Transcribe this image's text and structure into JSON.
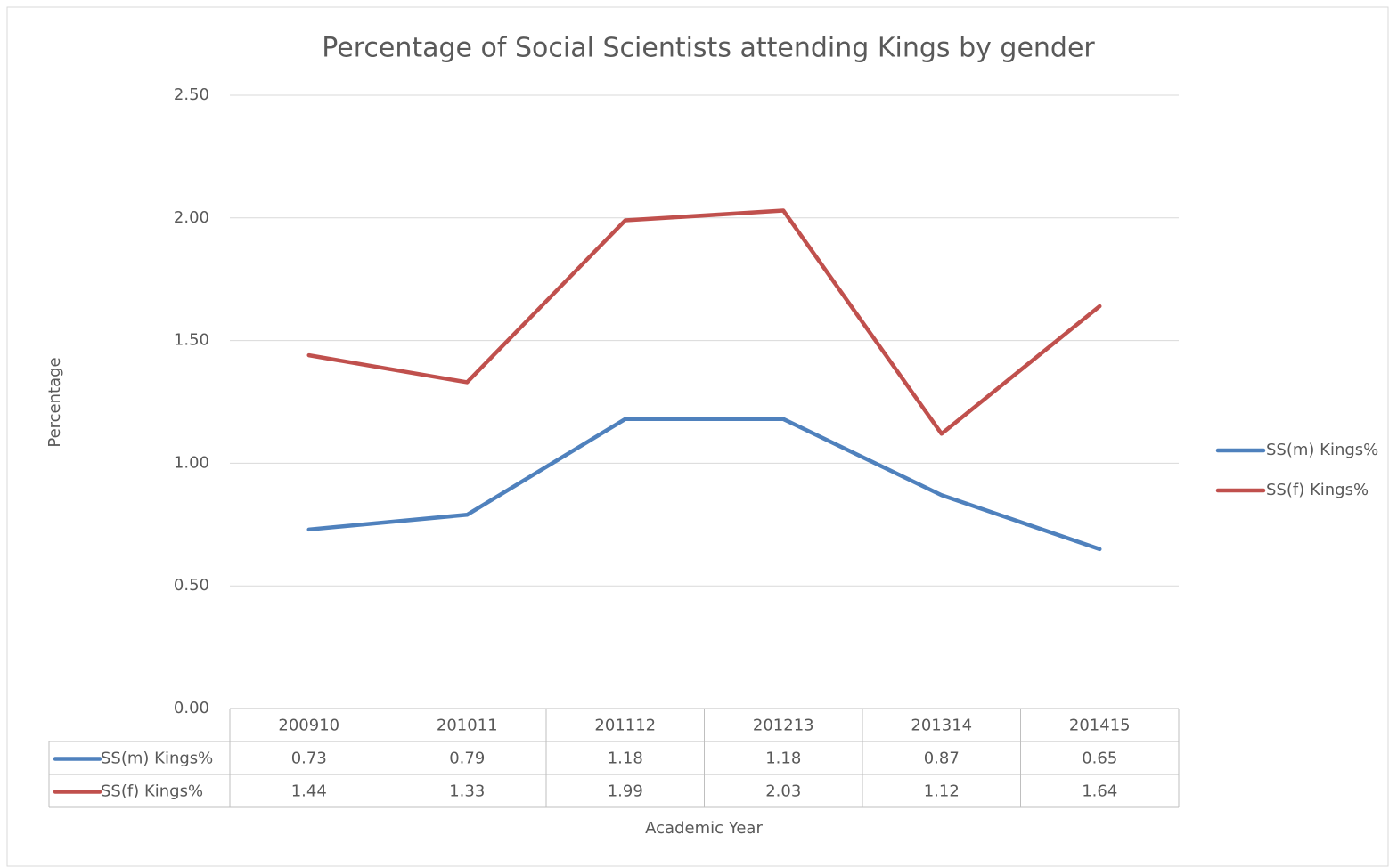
{
  "chart_data": {
    "type": "line",
    "title": "Percentage of Social Scientists attending Kings by gender",
    "x_label": "Academic Year",
    "y_label": "Percentage",
    "categories": [
      "200910",
      "201011",
      "201112",
      "201213",
      "201314",
      "201415"
    ],
    "series": [
      {
        "name": "SS(m) Kings%",
        "color": "#4f81bd",
        "values": [
          0.73,
          0.79,
          1.18,
          1.18,
          0.87,
          0.65
        ]
      },
      {
        "name": "SS(f) Kings%",
        "color": "#c0504d",
        "values": [
          1.44,
          1.33,
          1.99,
          2.03,
          1.12,
          1.64
        ]
      }
    ],
    "ylim": [
      0,
      2.5
    ],
    "yticks": [
      {
        "value": 0,
        "label": "0.00"
      },
      {
        "value": 0.5,
        "label": "0.50"
      },
      {
        "value": 1,
        "label": "1.00"
      },
      {
        "value": 1.5,
        "label": "1.50"
      },
      {
        "value": 2,
        "label": "2.00"
      },
      {
        "value": 2.5,
        "label": "2.50"
      }
    ],
    "grid": true,
    "legend": "right",
    "data_table": true
  }
}
